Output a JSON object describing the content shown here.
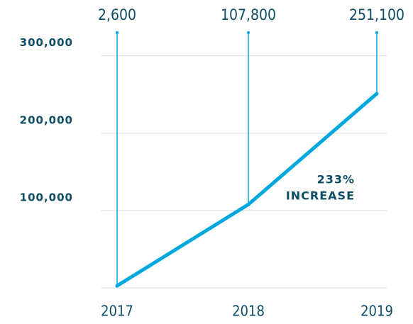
{
  "chart_data": {
    "type": "line",
    "categories": [
      "2017",
      "2018",
      "2019"
    ],
    "series": [
      {
        "color": "#00a8dd",
        "values": [
          2600,
          107800,
          251100
        ],
        "value_labels": [
          "2,600",
          "107,800",
          "251,100"
        ]
      }
    ],
    "ylim": [
      0,
      330000
    ],
    "yticks": [
      {
        "value": 100000,
        "label": "100,000"
      },
      {
        "value": 200000,
        "label": "200,000"
      },
      {
        "value": 300000,
        "label": "300,000"
      }
    ],
    "grid": true,
    "annotation": [
      "233%",
      "INCREASE"
    ]
  }
}
